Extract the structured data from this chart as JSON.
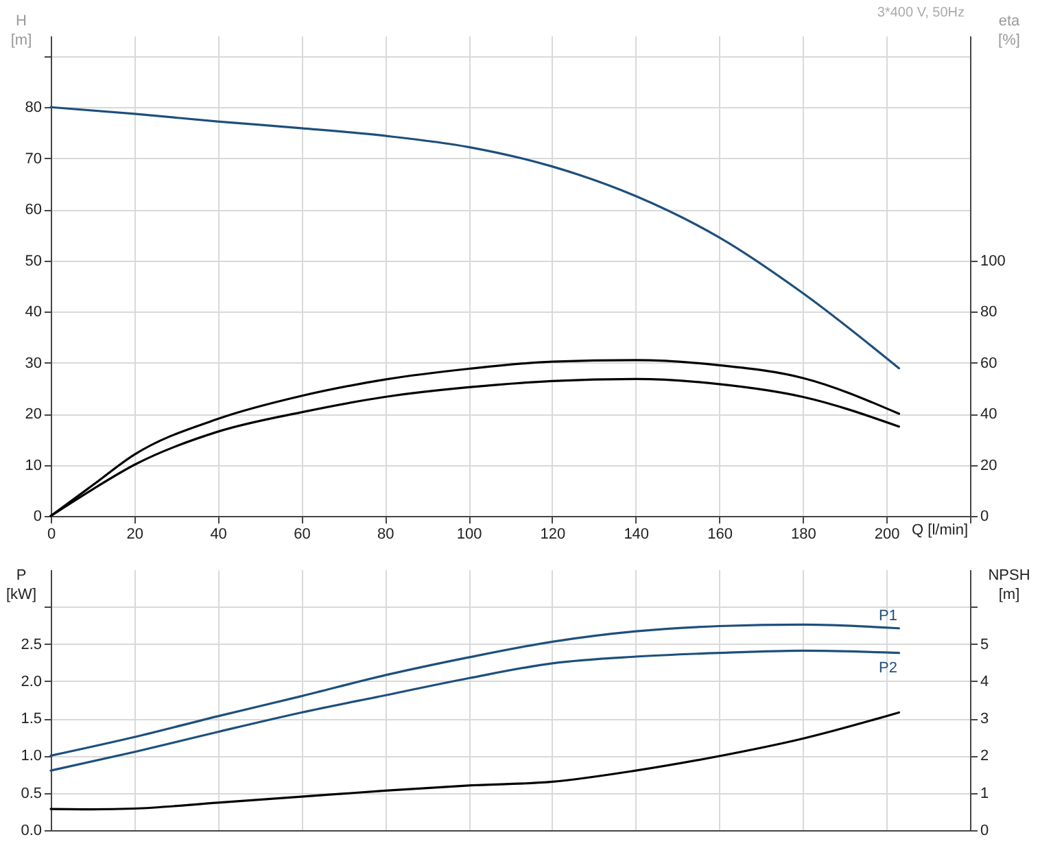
{
  "chart_data": [
    {
      "type": "line",
      "xlabel": "Q [l/min]",
      "ylabel": "H [m]",
      "y2label": "eta [%]",
      "annotations": [
        "3*400 V, 50Hz"
      ],
      "xlim": [
        0,
        220
      ],
      "xticks": [
        0,
        20,
        40,
        60,
        80,
        100,
        120,
        140,
        160,
        180,
        200,
        {
          "value": 220,
          "label": null
        }
      ],
      "ylim": [
        0,
        94
      ],
      "yticks": [
        0,
        10,
        20,
        30,
        40,
        50,
        60,
        70,
        80,
        {
          "value": 90,
          "label": null
        }
      ],
      "y2lim": [
        0,
        188
      ],
      "y2ticks": [
        0,
        20,
        40,
        60,
        80,
        100
      ],
      "grid": true,
      "series": [
        {
          "color": "#1d4f7c",
          "x": [
            0,
            20,
            40,
            60,
            80,
            100,
            120,
            140,
            160,
            180,
            203
          ],
          "values": [
            80,
            78.7,
            77.2,
            75.9,
            74.4,
            72.2,
            68.4,
            62.6,
            54.5,
            43.6,
            28.9
          ]
        },
        {
          "color": "#000000",
          "axis": "y2",
          "x": [
            0,
            10,
            20,
            40,
            60,
            80,
            100,
            120,
            140,
            160,
            180,
            203
          ],
          "values": [
            0,
            12,
            24,
            38,
            47,
            53.4,
            57.6,
            60.4,
            61,
            59,
            54,
            40
          ]
        },
        {
          "color": "#000000",
          "axis": "y2",
          "x": [
            0,
            10,
            20,
            40,
            60,
            80,
            100,
            120,
            140,
            160,
            180,
            203
          ],
          "values": [
            0,
            10.4,
            20,
            33,
            40.6,
            46.6,
            50.4,
            52.8,
            53.6,
            51.6,
            46.6,
            35
          ]
        }
      ]
    },
    {
      "type": "line",
      "ylabel": "P [kW]",
      "y2label": "NPSH [m]",
      "tick_labels": "y",
      "xlim": [
        0,
        220
      ],
      "xticks": [
        0,
        20,
        40,
        60,
        80,
        100,
        120,
        140,
        160,
        180,
        200,
        {
          "value": 220,
          "label": null
        }
      ],
      "ylim": [
        0,
        3.5
      ],
      "yticks": [
        {
          "value": 0,
          "label": "0.0"
        },
        0.5,
        {
          "value": 1,
          "label": "1.0"
        },
        1.5,
        {
          "value": 2,
          "label": "2.0"
        },
        2.5,
        {
          "value": 3,
          "label": null
        }
      ],
      "y2lim": [
        0,
        7
      ],
      "y2ticks": [
        0,
        1,
        2,
        3,
        4,
        5,
        {
          "value": 6,
          "label": null
        }
      ],
      "grid": true,
      "series": [
        {
          "name": "P1",
          "color": "#1d4f7c",
          "x": [
            0,
            20,
            40,
            60,
            80,
            100,
            120,
            140,
            160,
            180,
            203
          ],
          "values": [
            1.0,
            1.25,
            1.53,
            1.8,
            2.08,
            2.32,
            2.53,
            2.67,
            2.74,
            2.76,
            2.71
          ]
        },
        {
          "name": "P2",
          "color": "#1d4f7c",
          "x": [
            0,
            20,
            40,
            60,
            80,
            100,
            120,
            140,
            160,
            180,
            203
          ],
          "values": [
            0.8,
            1.05,
            1.32,
            1.58,
            1.81,
            2.04,
            2.24,
            2.33,
            2.38,
            2.41,
            2.38
          ]
        },
        {
          "color": "#000000",
          "axis": "y2",
          "x": [
            0,
            10,
            20,
            40,
            60,
            80,
            100,
            120,
            140,
            160,
            180,
            203
          ],
          "values": [
            0.57,
            0.56,
            0.58,
            0.74,
            0.9,
            1.06,
            1.2,
            1.3,
            1.6,
            1.99,
            2.46,
            3.16
          ]
        }
      ]
    }
  ]
}
